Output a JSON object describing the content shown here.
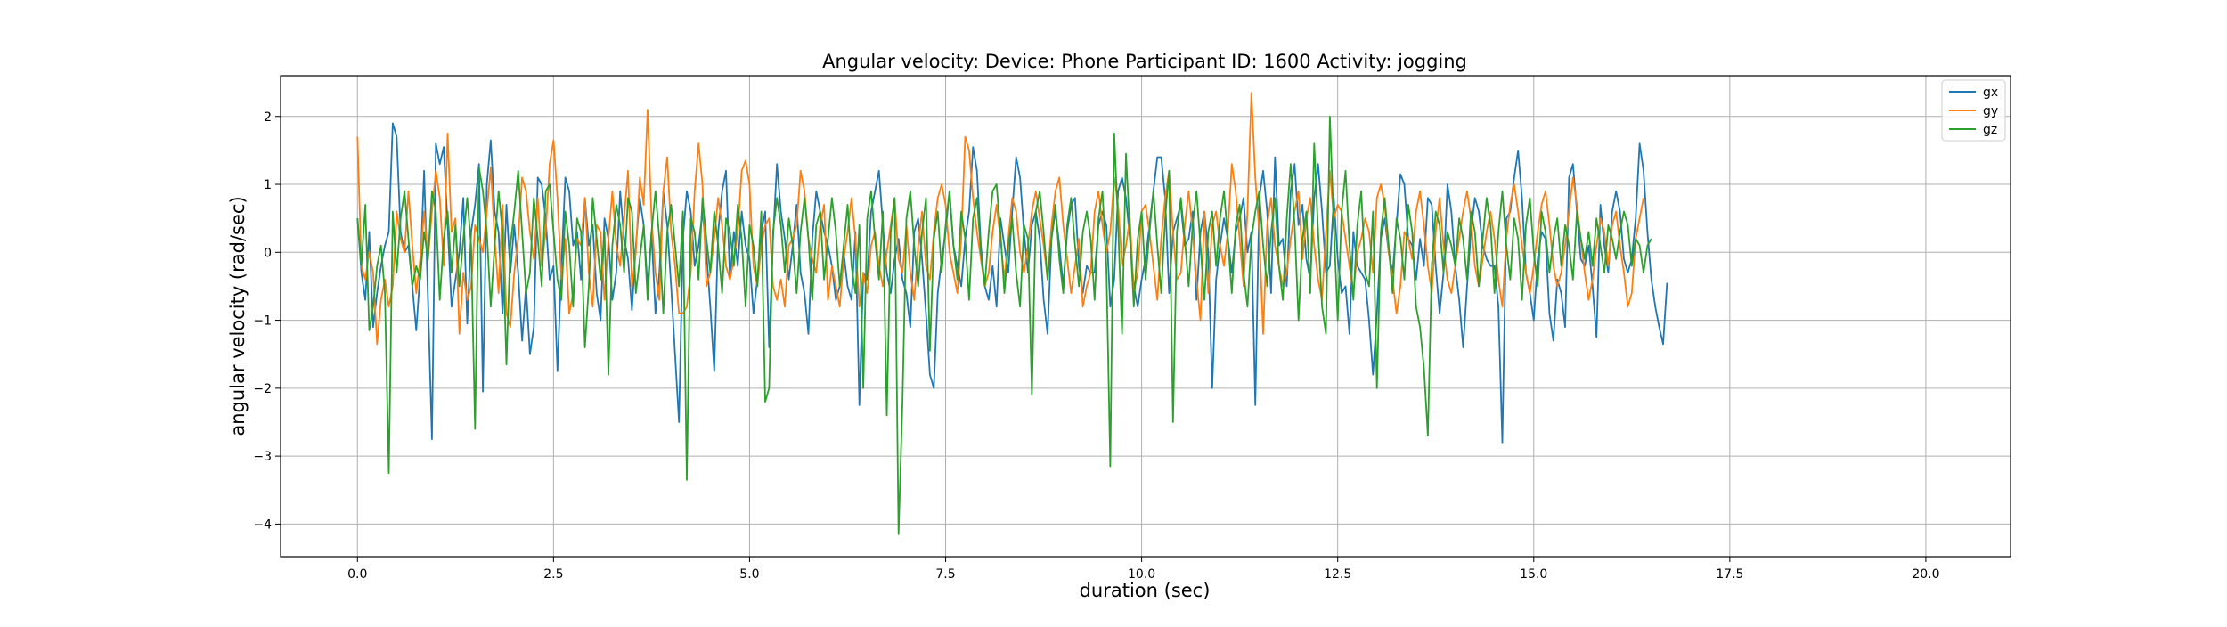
{
  "chart_data": {
    "type": "line",
    "title": "Angular velocity:  Device: Phone     Participant ID: 1600      Activity:  jogging",
    "xlabel": "duration  (sec)",
    "ylabel": "angular velocity   (rad/sec)",
    "xlim": [
      -0.98,
      21.08
    ],
    "ylim": [
      -4.48,
      2.6
    ],
    "x_ticks": [
      0.0,
      2.5,
      5.0,
      7.5,
      10.0,
      12.5,
      15.0,
      17.5,
      20.0
    ],
    "x_tick_labels": [
      "0.0",
      "2.5",
      "5.0",
      "7.5",
      "10.0",
      "12.5",
      "15.0",
      "17.5",
      "20.0"
    ],
    "y_ticks": [
      -4,
      -3,
      -2,
      -1,
      0,
      1,
      2
    ],
    "y_tick_labels": [
      "−4",
      "−3",
      "−2",
      "−1",
      "0",
      "1",
      "2"
    ],
    "grid": true,
    "legend_position": "top-right",
    "x_start": 0.0,
    "x_step": 0.05,
    "series": [
      {
        "name": "gx",
        "color": "#1f77b4",
        "values": [
          0.5,
          -0.3,
          -0.7,
          0.3,
          -1.1,
          -0.6,
          -0.2,
          0.1,
          0.3,
          1.9,
          1.7,
          0.3,
          0.0,
          0.1,
          -0.5,
          -1.15,
          -0.3,
          1.2,
          -0.7,
          -2.75,
          1.6,
          1.3,
          1.55,
          0.4,
          -0.8,
          -0.4,
          0.0,
          0.8,
          -1.05,
          0.3,
          0.7,
          1.3,
          -2.05,
          1.0,
          1.65,
          0.6,
          0.3,
          -0.9,
          0.7,
          -0.3,
          0.4,
          -0.3,
          -1.3,
          -0.5,
          -1.5,
          -1.1,
          1.1,
          1.0,
          0.5,
          -0.4,
          -0.2,
          -1.75,
          -0.2,
          1.1,
          0.9,
          0.1,
          0.3,
          -0.4,
          0.8,
          0.1,
          0.4,
          -0.6,
          -1.0,
          0.5,
          0.2,
          -0.7,
          -0.3,
          0.9,
          0.2,
          -0.1,
          -0.85,
          0.1,
          0.8,
          0.4,
          -0.5,
          0.3,
          -0.9,
          -0.3,
          0.9,
          0.4,
          -0.5,
          -1.5,
          -2.5,
          0.2,
          0.9,
          0.6,
          -0.2,
          0.1,
          0.6,
          0.0,
          -0.8,
          -1.75,
          0.3,
          0.9,
          1.2,
          -0.4,
          0.3,
          -0.2,
          0.6,
          0.1,
          -0.1,
          -0.9,
          -0.4,
          0.3,
          0.6,
          -1.4,
          0.2,
          1.3,
          0.6,
          0.2,
          -0.4,
          0.1,
          0.7,
          -0.3,
          -0.6,
          -1.2,
          0.2,
          0.9,
          0.6,
          0.3,
          0.1,
          -0.2,
          -0.7,
          -0.5,
          0.0,
          -0.5,
          -0.7,
          0.3,
          -2.25,
          -0.3,
          -0.4,
          0.6,
          0.9,
          1.2,
          0.4,
          -0.3,
          -0.6,
          -0.1,
          0.2,
          -0.4,
          -0.6,
          -1.1,
          0.3,
          0.5,
          -0.1,
          -0.9,
          -1.8,
          -2.0,
          -0.6,
          -0.1,
          0.3,
          0.9,
          0.1,
          -0.2,
          -0.5,
          0.2,
          0.6,
          1.55,
          1.2,
          0.1,
          -0.5,
          -0.7,
          -0.2,
          -0.8,
          0.5,
          0.1,
          -0.3,
          0.6,
          1.4,
          1.1,
          0.3,
          -0.3,
          0.4,
          0.6,
          0.2,
          -0.7,
          -1.2,
          0.2,
          0.6,
          0.1,
          -0.5,
          0.3,
          0.7,
          0.8,
          -0.2,
          -0.6,
          -0.2,
          -0.3,
          -0.3,
          0.4,
          0.6,
          0.4,
          -0.8,
          -0.4,
          0.9,
          1.1,
          0.8,
          0.2,
          -0.5,
          -0.8,
          -0.4,
          -0.1,
          0.4,
          0.9,
          1.4,
          1.4,
          0.8,
          -0.6,
          0.3,
          0.5,
          0.7,
          0.1,
          0.2,
          0.6,
          -0.7,
          0.3,
          0.6,
          0.0,
          -2.0,
          -0.4,
          0.1,
          0.5,
          0.2,
          -0.3,
          0.3,
          0.5,
          0.8,
          0.0,
          0.3,
          -2.25,
          0.8,
          1.2,
          0.6,
          -0.6,
          1.4,
          0.1,
          0.2,
          -0.5,
          0.9,
          1.3,
          0.4,
          0.7,
          -0.1,
          -0.4,
          0.8,
          1.3,
          0.6,
          -0.3,
          -0.2,
          0.8,
          -0.1,
          -0.6,
          -0.5,
          -1.2,
          0.3,
          -0.2,
          -0.3,
          -0.4,
          -1.0,
          -1.8,
          -0.9,
          0.2,
          0.5,
          0.0,
          -0.3,
          0.4,
          1.15,
          1.0,
          0.2,
          0.1,
          -0.4,
          0.2,
          -0.2,
          0.8,
          0.7,
          -0.2,
          -0.9,
          -0.3,
          1.0,
          0.6,
          -0.2,
          -0.7,
          -1.4,
          -0.5,
          0.3,
          0.8,
          0.6,
          0.1,
          -0.1,
          -0.2,
          -0.2,
          -0.8,
          -2.8,
          0.5,
          0.6,
          1.1,
          1.5,
          0.8,
          -0.3,
          -0.6,
          -1.0,
          -0.1,
          0.3,
          0.2,
          -0.9,
          -1.3,
          -0.4,
          -0.6,
          -1.1,
          1.1,
          1.3,
          0.6,
          -0.1,
          -0.2,
          0.1,
          -0.5,
          -1.25,
          0.7,
          0.1,
          -0.3,
          0.6,
          0.9,
          0.6,
          -0.1,
          -0.3,
          -0.1,
          0.5,
          1.6,
          1.2,
          0.3,
          -0.4,
          -0.8,
          -1.1,
          -1.35,
          -0.45
        ]
      },
      {
        "name": "gy",
        "color": "#ff7f0e",
        "values": [
          1.7,
          -0.2,
          -0.4,
          0.0,
          -0.3,
          -1.35,
          -0.7,
          -0.4,
          -0.8,
          -0.5,
          0.6,
          0.2,
          0.0,
          0.9,
          0.1,
          -0.6,
          -0.1,
          0.6,
          -0.1,
          0.6,
          1.2,
          0.8,
          -0.2,
          1.75,
          0.3,
          0.5,
          -1.2,
          -0.3,
          -0.7,
          -0.5,
          0.4,
          0.2,
          0.0,
          0.6,
          1.25,
          0.2,
          -0.6,
          0.7,
          -0.9,
          -1.1,
          -0.3,
          0.2,
          1.1,
          0.9,
          0.3,
          -0.1,
          0.8,
          -0.2,
          0.3,
          1.3,
          1.65,
          0.8,
          -0.4,
          0.2,
          -0.9,
          -0.6,
          0.2,
          0.1,
          0.8,
          -0.3,
          -0.8,
          0.4,
          0.3,
          -0.7,
          0.2,
          0.9,
          0.1,
          -0.2,
          0.5,
          1.2,
          -0.5,
          0.0,
          1.1,
          0.7,
          2.1,
          0.5,
          -0.3,
          -0.7,
          0.9,
          1.4,
          0.3,
          -0.2,
          -0.9,
          -0.9,
          -0.8,
          -0.3,
          0.9,
          1.6,
          1.0,
          -0.5,
          -0.3,
          0.2,
          0.8,
          0.4,
          -0.2,
          -0.4,
          -0.1,
          0.3,
          1.2,
          1.35,
          1.0,
          -0.2,
          -0.5,
          0.1,
          0.4,
          0.5,
          -0.5,
          -0.7,
          -0.4,
          -0.8,
          0.1,
          0.2,
          0.4,
          1.2,
          0.9,
          0.2,
          -0.1,
          -0.3,
          0.4,
          0.7,
          -0.7,
          -0.2,
          -0.5,
          -0.8,
          -0.1,
          0.3,
          0.8,
          0.2,
          -0.8,
          -0.3,
          -0.6,
          0.1,
          0.3,
          -0.2,
          -0.5,
          0.0,
          0.4,
          0.8,
          -0.1,
          -0.3,
          0.4,
          -0.3,
          -0.7,
          0.1,
          0.6,
          -0.2,
          -0.4,
          0.3,
          0.8,
          1.0,
          0.7,
          0.0,
          -0.3,
          -0.6,
          0.2,
          1.7,
          1.5,
          0.8,
          0.3,
          -0.1,
          -0.5,
          -0.3,
          0.3,
          0.7,
          0.2,
          -0.4,
          0.2,
          0.8,
          0.6,
          0.0,
          -0.3,
          0.1,
          0.6,
          0.9,
          0.5,
          0.1,
          -0.4,
          0.4,
          0.9,
          1.1,
          0.4,
          -0.1,
          -0.6,
          -0.2,
          0.2,
          -0.8,
          -0.5,
          -0.3,
          0.6,
          0.9,
          0.4,
          0.0,
          0.3,
          1.1,
          0.7,
          -0.2,
          0.1,
          0.5,
          -0.6,
          -0.3,
          0.6,
          0.7,
          0.3,
          -0.2,
          -0.7,
          0.2,
          0.8,
          1.2,
          0.3,
          -0.4,
          -0.3,
          0.4,
          0.9,
          0.3,
          -0.4,
          -1.0,
          0.6,
          -0.6,
          0.4,
          0.6,
          0.1,
          -0.2,
          0.3,
          1.3,
          0.9,
          0.2,
          -0.5,
          0.6,
          2.35,
          1.1,
          0.3,
          -1.2,
          0.4,
          0.8,
          0.1,
          -0.2,
          -0.5,
          -0.3,
          0.2,
          0.6,
          0.9,
          -0.1,
          0.5,
          0.8,
          0.1,
          -0.4,
          -0.7,
          0.3,
          1.2,
          0.5,
          0.7,
          0.6,
          0.2,
          -0.2,
          -0.6,
          0.0,
          0.2,
          0.5,
          0.3,
          -0.3,
          0.8,
          1.0,
          0.7,
          0.0,
          -0.4,
          -0.9,
          -0.5,
          0.3,
          0.2,
          -0.1,
          0.6,
          0.9,
          0.4,
          -0.2,
          -0.6,
          0.3,
          0.8,
          0.1,
          -0.4,
          -0.6,
          -0.2,
          0.2,
          0.6,
          0.9,
          0.5,
          -0.2,
          -0.5,
          -0.1,
          0.3,
          0.6,
          0.2,
          -0.4,
          -0.8,
          0.2,
          0.7,
          1.0,
          0.6,
          0.1,
          -0.3,
          -0.6,
          -0.2,
          0.3,
          0.7,
          0.9,
          0.4,
          -0.2,
          -0.5,
          -0.3,
          0.1,
          0.6,
          1.1,
          0.7,
          0.2,
          -0.3,
          -0.7,
          -0.4,
          0.1,
          0.5,
          0.3,
          -0.2,
          0.4,
          0.6,
          0.1,
          -0.3,
          -0.8,
          -0.6,
          0.2,
          0.5,
          0.8
        ]
      },
      {
        "name": "gz",
        "color": "#2ca02c",
        "values": [
          0.5,
          -0.2,
          0.7,
          -1.15,
          -0.8,
          -0.2,
          0.1,
          -0.6,
          -3.25,
          0.6,
          -0.3,
          0.5,
          0.9,
          0.2,
          -0.5,
          -0.2,
          -0.4,
          0.3,
          -0.1,
          0.9,
          0.6,
          -0.7,
          0.2,
          0.6,
          -0.3,
          0.4,
          -0.5,
          0.2,
          0.8,
          0.1,
          -2.6,
          1.25,
          0.9,
          0.3,
          -0.8,
          0.1,
          0.9,
          0.3,
          -1.65,
          0.1,
          0.6,
          1.2,
          0.3,
          -0.6,
          -0.3,
          0.8,
          0.2,
          -0.5,
          0.9,
          1.0,
          0.3,
          -0.4,
          -0.7,
          0.6,
          0.1,
          -0.8,
          0.5,
          0.3,
          -1.4,
          -0.5,
          0.8,
          0.2,
          -0.4,
          0.3,
          -1.8,
          0.1,
          0.7,
          0.4,
          -0.3,
          0.8,
          0.6,
          -0.6,
          -0.1,
          0.4,
          -0.7,
          0.3,
          0.9,
          0.2,
          -0.9,
          0.3,
          0.7,
          0.1,
          -0.5,
          0.6,
          -3.35,
          0.5,
          0.3,
          -0.4,
          0.8,
          0.2,
          -0.3,
          0.6,
          0.1,
          -0.6,
          0.5,
          0.3,
          -0.2,
          0.7,
          0.2,
          -0.8,
          0.4,
          0.1,
          -0.5,
          0.6,
          -2.2,
          -2.0,
          0.3,
          0.8,
          0.4,
          -0.3,
          0.5,
          0.1,
          -0.6,
          0.3,
          0.8,
          0.2,
          -0.7,
          0.4,
          0.6,
          -0.4,
          0.2,
          0.8,
          0.3,
          -0.5,
          0.1,
          0.7,
          -0.2,
          -0.6,
          0.4,
          -2.0,
          0.5,
          0.9,
          0.2,
          -0.4,
          0.6,
          -2.4,
          0.3,
          0.8,
          -4.15,
          -2.2,
          0.5,
          0.9,
          0.1,
          -0.5,
          0.3,
          0.8,
          -1.45,
          0.2,
          0.6,
          -0.3,
          0.4,
          0.9,
          0.1,
          -0.4,
          0.6,
          0.2,
          -0.7,
          0.5,
          0.8,
          0.0,
          -0.5,
          0.3,
          0.9,
          1.0,
          0.3,
          -0.6,
          0.1,
          0.5,
          -0.3,
          -0.8,
          0.4,
          0.2,
          -2.1,
          0.6,
          0.9,
          0.3,
          -0.4,
          0.2,
          0.7,
          -0.1,
          -0.6,
          0.4,
          0.8,
          0.1,
          -0.5,
          0.3,
          0.6,
          0.2,
          -0.7,
          0.5,
          0.9,
          -0.2,
          -3.15,
          1.75,
          0.4,
          -1.2,
          1.45,
          0.3,
          -0.8,
          0.2,
          0.6,
          -0.4,
          0.3,
          0.9,
          0.1,
          -0.6,
          0.5,
          1.2,
          -2.5,
          0.3,
          0.8,
          0.2,
          -0.5,
          0.4,
          0.9,
          0.1,
          -0.7,
          0.3,
          0.6,
          -0.2,
          0.5,
          0.9,
          0.2,
          -0.6,
          0.4,
          0.7,
          -0.3,
          -0.8,
          0.2,
          0.6,
          0.9,
          0.1,
          -0.5,
          0.3,
          0.8,
          -0.2,
          -0.7,
          0.5,
          1.3,
          0.4,
          -1.0,
          0.2,
          0.6,
          -0.6,
          1.6,
          0.3,
          -0.8,
          -1.2,
          2.0,
          0.4,
          -1.0,
          0.6,
          1.2,
          0.1,
          -0.7,
          0.4,
          0.9,
          -0.3,
          -0.5,
          0.6,
          -2.0,
          0.3,
          0.8,
          0.1,
          -0.6,
          0.5,
          0.2,
          -0.4,
          0.7,
          0.3,
          -0.8,
          -1.1,
          -1.7,
          -2.7,
          -0.2,
          0.6,
          0.4,
          -0.3,
          0.3,
          0.1,
          -0.2,
          0.5,
          0.2,
          -0.4,
          0.6,
          0.3,
          -0.5,
          0.2,
          0.8,
          0.4,
          -0.6,
          0.3,
          0.9,
          0.1,
          -0.4,
          0.5,
          0.2,
          -0.7,
          0.4,
          0.8,
          0.0,
          -0.5,
          0.6,
          0.3,
          -0.3,
          0.2,
          0.5,
          -0.2,
          0.4,
          0.1,
          -0.4,
          0.6,
          0.2,
          -0.1,
          0.3,
          -0.2,
          0.5,
          0.1,
          -0.3,
          0.4,
          0.2,
          -0.1,
          0.3,
          0.6,
          0.4,
          -0.2,
          0.2,
          0.1,
          -0.3,
          0.1,
          0.2
        ]
      }
    ]
  }
}
